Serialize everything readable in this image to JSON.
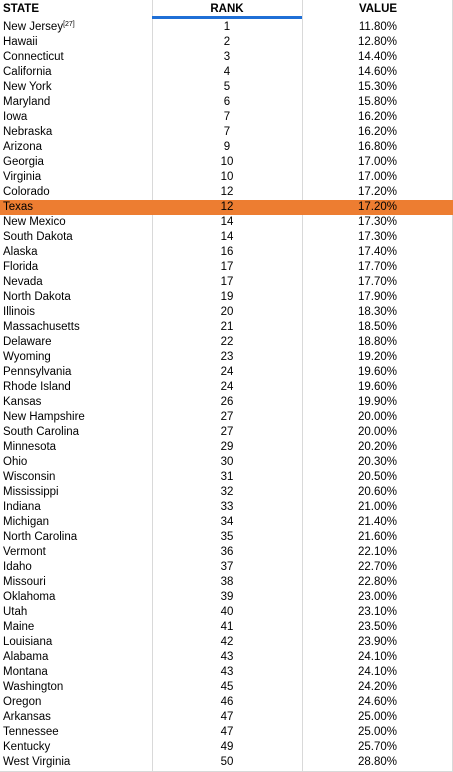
{
  "table": {
    "headers": {
      "state": "STATE",
      "rank": "RANK",
      "value": "VALUE"
    },
    "highlight_color": "#ed7d31",
    "header_underline_color": "#1f6fd6",
    "rows": [
      {
        "state": "New Jersey",
        "note": "[27]",
        "rank": "1",
        "value": "11.80%"
      },
      {
        "state": "Hawaii",
        "rank": "2",
        "value": "12.80%"
      },
      {
        "state": "Connecticut",
        "rank": "3",
        "value": "14.40%"
      },
      {
        "state": "California",
        "rank": "4",
        "value": "14.60%"
      },
      {
        "state": "New York",
        "rank": "5",
        "value": "15.30%"
      },
      {
        "state": "Maryland",
        "rank": "6",
        "value": "15.80%"
      },
      {
        "state": "Iowa",
        "rank": "7",
        "value": "16.20%"
      },
      {
        "state": "Nebraska",
        "rank": "7",
        "value": "16.20%"
      },
      {
        "state": "Arizona",
        "rank": "9",
        "value": "16.80%"
      },
      {
        "state": "Georgia",
        "rank": "10",
        "value": "17.00%"
      },
      {
        "state": "Virginia",
        "rank": "10",
        "value": "17.00%"
      },
      {
        "state": "Colorado",
        "rank": "12",
        "value": "17.20%"
      },
      {
        "state": "Texas",
        "rank": "12",
        "value": "17.20%",
        "highlighted": true
      },
      {
        "state": "New Mexico",
        "rank": "14",
        "value": "17.30%"
      },
      {
        "state": "South Dakota",
        "rank": "14",
        "value": "17.30%"
      },
      {
        "state": "Alaska",
        "rank": "16",
        "value": "17.40%"
      },
      {
        "state": "Florida",
        "rank": "17",
        "value": "17.70%"
      },
      {
        "state": "Nevada",
        "rank": "17",
        "value": "17.70%"
      },
      {
        "state": "North Dakota",
        "rank": "19",
        "value": "17.90%"
      },
      {
        "state": "Illinois",
        "rank": "20",
        "value": "18.30%"
      },
      {
        "state": "Massachusetts",
        "rank": "21",
        "value": "18.50%"
      },
      {
        "state": "Delaware",
        "rank": "22",
        "value": "18.80%"
      },
      {
        "state": "Wyoming",
        "rank": "23",
        "value": "19.20%"
      },
      {
        "state": "Pennsylvania",
        "rank": "24",
        "value": "19.60%"
      },
      {
        "state": "Rhode Island",
        "rank": "24",
        "value": "19.60%"
      },
      {
        "state": "Kansas",
        "rank": "26",
        "value": "19.90%"
      },
      {
        "state": "New Hampshire",
        "rank": "27",
        "value": "20.00%"
      },
      {
        "state": "South Carolina",
        "rank": "27",
        "value": "20.00%"
      },
      {
        "state": "Minnesota",
        "rank": "29",
        "value": "20.20%"
      },
      {
        "state": "Ohio",
        "rank": "30",
        "value": "20.30%"
      },
      {
        "state": "Wisconsin",
        "rank": "31",
        "value": "20.50%"
      },
      {
        "state": "Mississippi",
        "rank": "32",
        "value": "20.60%"
      },
      {
        "state": "Indiana",
        "rank": "33",
        "value": "21.00%"
      },
      {
        "state": "Michigan",
        "rank": "34",
        "value": "21.40%"
      },
      {
        "state": "North Carolina",
        "rank": "35",
        "value": "21.60%"
      },
      {
        "state": "Vermont",
        "rank": "36",
        "value": "22.10%"
      },
      {
        "state": "Idaho",
        "rank": "37",
        "value": "22.70%"
      },
      {
        "state": "Missouri",
        "rank": "38",
        "value": "22.80%"
      },
      {
        "state": "Oklahoma",
        "rank": "39",
        "value": "23.00%"
      },
      {
        "state": "Utah",
        "rank": "40",
        "value": "23.10%"
      },
      {
        "state": "Maine",
        "rank": "41",
        "value": "23.50%"
      },
      {
        "state": "Louisiana",
        "rank": "42",
        "value": "23.90%"
      },
      {
        "state": "Alabama",
        "rank": "43",
        "value": "24.10%"
      },
      {
        "state": "Montana",
        "rank": "43",
        "value": "24.10%"
      },
      {
        "state": "Washington",
        "rank": "45",
        "value": "24.20%"
      },
      {
        "state": "Oregon",
        "rank": "46",
        "value": "24.60%"
      },
      {
        "state": "Arkansas",
        "rank": "47",
        "value": "25.00%"
      },
      {
        "state": "Tennessee",
        "rank": "47",
        "value": "25.00%"
      },
      {
        "state": "Kentucky",
        "rank": "49",
        "value": "25.70%"
      },
      {
        "state": "West Virginia",
        "rank": "50",
        "value": "28.80%"
      }
    ]
  }
}
